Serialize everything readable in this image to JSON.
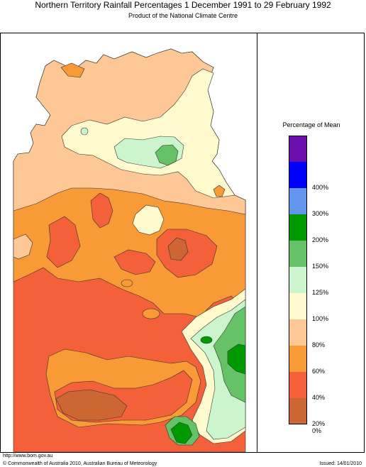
{
  "title": "Northern Territory Rainfall Percentages 1 December 1991 to 29 February 1992",
  "subtitle": "Product of the National Climate Centre",
  "legend": {
    "title": "Percentage of Mean",
    "bins": [
      {
        "color": "#6a0dad"
      },
      {
        "color": "#0000ff",
        "label": "400%"
      },
      {
        "color": "#6495ed",
        "label": "300%"
      },
      {
        "color": "#009900",
        "label": "200%"
      },
      {
        "color": "#66c266",
        "label": "150%"
      },
      {
        "color": "#cdf5cd",
        "label": "125%"
      },
      {
        "color": "#fffacd",
        "label": "100%"
      },
      {
        "color": "#fec896",
        "label": "80%"
      },
      {
        "color": "#f89a35",
        "label": "60%"
      },
      {
        "color": "#f4603a",
        "label": "40%"
      },
      {
        "color": "#cc6633",
        "label": "20%"
      }
    ],
    "bottom_label": "0%"
  },
  "footer": {
    "url": "http://www.bom.gov.au",
    "copyright": "© Commonwealth of Australia 2010, Australian Bureau of Meteorology",
    "issued": "Issued: 14/01/2010"
  }
}
